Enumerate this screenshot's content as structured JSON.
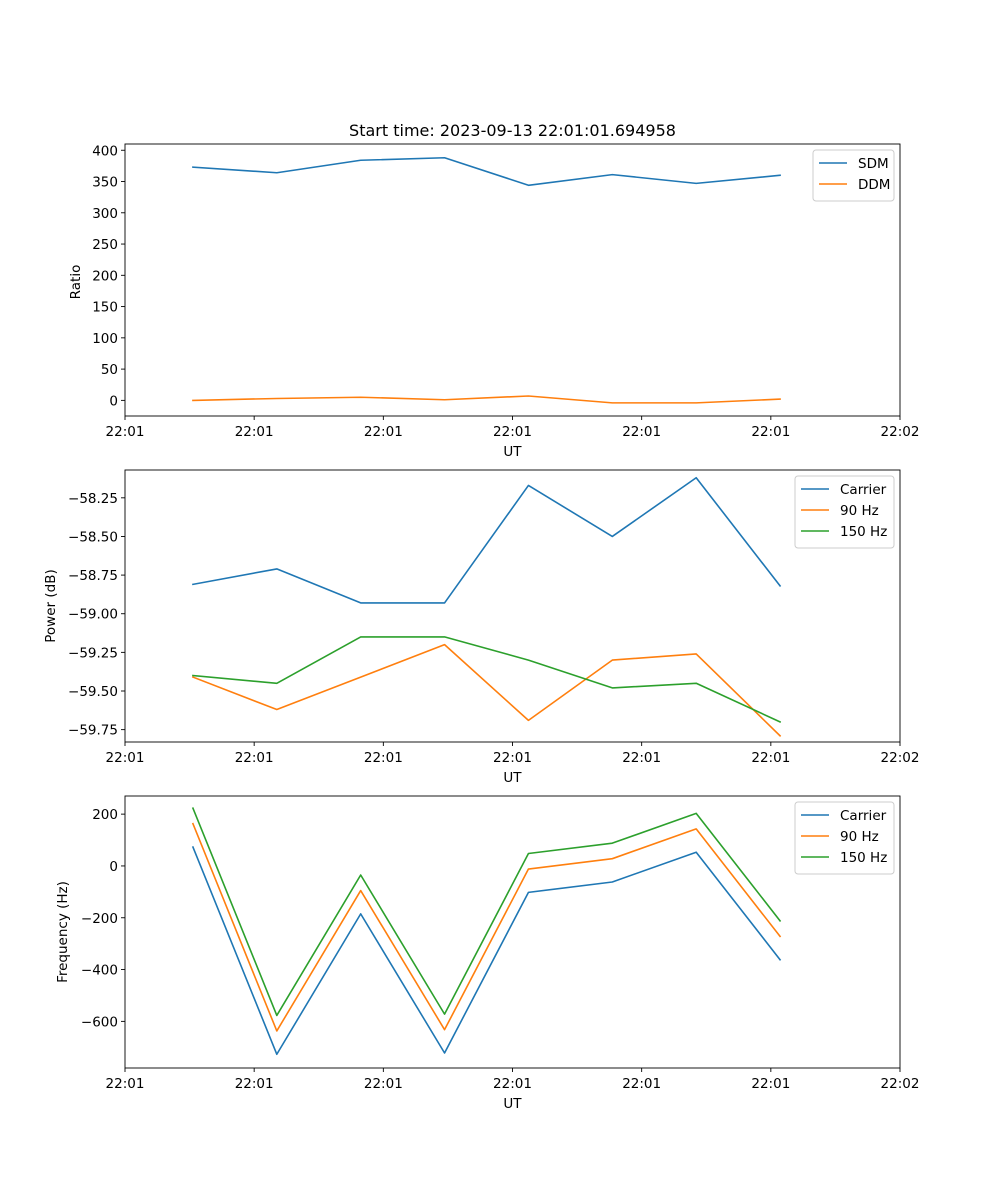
{
  "chart_data": [
    {
      "type": "line",
      "title": "Start time: 2023-09-13 22:01:01.694958",
      "xlabel": "UT",
      "ylabel": "Ratio",
      "x": [
        1,
        2,
        3,
        4,
        5,
        6,
        7,
        8
      ],
      "xlim": [
        0.19,
        9.43
      ],
      "x_ticks": [
        0.19,
        1.73,
        3.27,
        4.81,
        6.35,
        7.89,
        9.43
      ],
      "x_tick_labels": [
        "22:01",
        "22:01",
        "22:01",
        "22:01",
        "22:01",
        "22:01",
        "22:02"
      ],
      "ylim": [
        -25,
        410
      ],
      "y_ticks": [
        0,
        50,
        100,
        150,
        200,
        250,
        300,
        350,
        400
      ],
      "y_tick_labels": [
        "0",
        "50",
        "100",
        "150",
        "200",
        "250",
        "300",
        "350",
        "400"
      ],
      "legend_position": "top-right",
      "series": [
        {
          "name": "SDM",
          "color": "#1f77b4",
          "values": [
            373,
            364,
            384,
            388,
            344,
            361,
            347,
            360
          ]
        },
        {
          "name": "DDM",
          "color": "#ff7f0e",
          "values": [
            0,
            3,
            5,
            1,
            7,
            -4,
            -4,
            2
          ]
        }
      ]
    },
    {
      "type": "line",
      "title": "",
      "xlabel": "UT",
      "ylabel": "Power (dB)",
      "x": [
        1,
        2,
        3,
        4,
        5,
        6,
        7,
        8
      ],
      "xlim": [
        0.19,
        9.43
      ],
      "x_ticks": [
        0.19,
        1.73,
        3.27,
        4.81,
        6.35,
        7.89,
        9.43
      ],
      "x_tick_labels": [
        "22:01",
        "22:01",
        "22:01",
        "22:01",
        "22:01",
        "22:01",
        "22:02"
      ],
      "ylim": [
        -59.83,
        -58.07
      ],
      "y_ticks": [
        -59.75,
        -59.5,
        -59.25,
        -59.0,
        -58.75,
        -58.5,
        -58.25
      ],
      "y_tick_labels": [
        "−59.75",
        "−59.50",
        "−59.25",
        "−59.00",
        "−58.75",
        "−58.50",
        "−58.25"
      ],
      "legend_position": "top-right",
      "series": [
        {
          "name": "Carrier",
          "color": "#1f77b4",
          "values": [
            -58.81,
            -58.71,
            -58.93,
            -58.93,
            -58.17,
            -58.5,
            -58.12,
            -58.82
          ]
        },
        {
          "name": "90 Hz",
          "color": "#ff7f0e",
          "values": [
            -59.41,
            -59.62,
            -59.41,
            -59.2,
            -59.69,
            -59.3,
            -59.26,
            -59.79
          ]
        },
        {
          "name": "150 Hz",
          "color": "#2ca02c",
          "values": [
            -59.4,
            -59.45,
            -59.15,
            -59.15,
            -59.3,
            -59.48,
            -59.45,
            -59.7
          ]
        }
      ]
    },
    {
      "type": "line",
      "title": "",
      "xlabel": "UT",
      "ylabel": "Frequency (Hz)",
      "x": [
        1,
        2,
        3,
        4,
        5,
        6,
        7,
        8
      ],
      "xlim": [
        0.19,
        9.43
      ],
      "x_ticks": [
        0.19,
        1.73,
        3.27,
        4.81,
        6.35,
        7.89,
        9.43
      ],
      "x_tick_labels": [
        "22:01",
        "22:01",
        "22:01",
        "22:01",
        "22:01",
        "22:01",
        "22:02"
      ],
      "ylim": [
        -780,
        270
      ],
      "y_ticks": [
        -600,
        -400,
        -200,
        0,
        200
      ],
      "y_tick_labels": [
        "−600",
        "−400",
        "−200",
        "0",
        "200"
      ],
      "legend_position": "top-right",
      "series": [
        {
          "name": "Carrier",
          "color": "#1f77b4",
          "values": [
            73,
            -727,
            -185,
            -722,
            -102,
            -62,
            53,
            -362
          ]
        },
        {
          "name": "90 Hz",
          "color": "#ff7f0e",
          "values": [
            163,
            -637,
            -95,
            -632,
            -12,
            28,
            143,
            -272
          ]
        },
        {
          "name": "150 Hz",
          "color": "#2ca02c",
          "values": [
            223,
            -577,
            -35,
            -572,
            48,
            88,
            203,
            -212
          ]
        }
      ]
    }
  ]
}
